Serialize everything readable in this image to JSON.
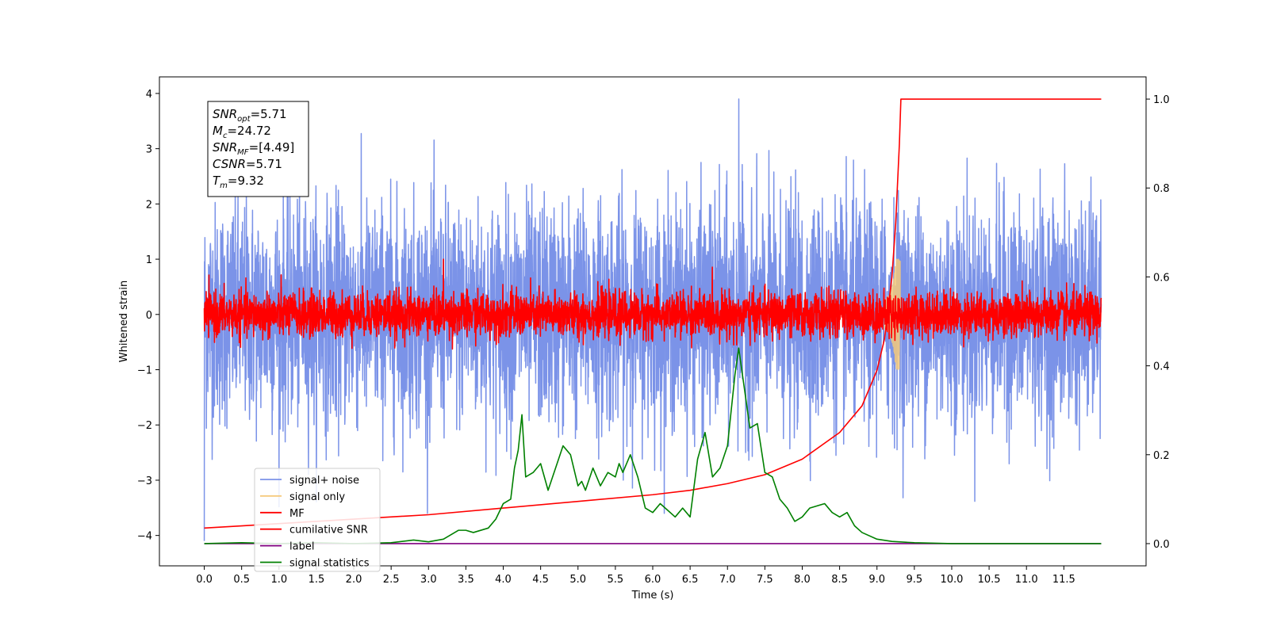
{
  "chart_data": {
    "type": "line",
    "title": "",
    "xlabel": "Time (s)",
    "ylabel": "Whitened strain",
    "y2label": "",
    "xlim": [
      -0.6,
      12.6
    ],
    "ylim": [
      -4.55,
      4.3
    ],
    "y2lim": [
      -0.05,
      1.05
    ],
    "x_ticks": [
      "0.0",
      "0.5",
      "1.0",
      "1.5",
      "2.0",
      "2.5",
      "3.0",
      "3.5",
      "4.0",
      "4.5",
      "5.0",
      "5.5",
      "6.0",
      "6.5",
      "7.0",
      "7.5",
      "8.0",
      "8.5",
      "9.0",
      "9.5",
      "10.0",
      "10.5",
      "11.0",
      "11.5"
    ],
    "y_ticks": [
      "4",
      "3",
      "2",
      "1",
      "0",
      "−1",
      "−2",
      "−3",
      "−4"
    ],
    "y2_ticks": [
      "1.0",
      "0.8",
      "0.6",
      "0.4",
      "0.2",
      "0.0"
    ],
    "grid": false,
    "legend_position": "lower-left",
    "annotation": {
      "lines": [
        {
          "main": "SNR",
          "sub": "opt",
          "rest": "=5.71"
        },
        {
          "main": "M",
          "sub": "c",
          "rest": "=24.72"
        },
        {
          "main": "SNR",
          "sub": "MF",
          "rest": "=[4.49]"
        },
        {
          "main": "CSNR",
          "sub": "",
          "rest": "=5.71"
        },
        {
          "main": "T",
          "sub": "m",
          "rest": "=9.32"
        }
      ]
    },
    "series": [
      {
        "name": "signal+ noise",
        "color": "#7b93e8",
        "axis": "left",
        "kind": "noise",
        "x_range": [
          0,
          12
        ],
        "mean": 0.0,
        "std": 1.0,
        "peak": {
          "x": 7.15,
          "y": 3.9
        },
        "min": {
          "x": 0.0,
          "y": -4.1
        }
      },
      {
        "name": "signal only",
        "color": "#f5c97a",
        "axis": "left",
        "kind": "chirp",
        "x_range": [
          9.1,
          9.35
        ],
        "amplitude": 1.0,
        "merger_x": 9.3
      },
      {
        "name": "MF",
        "color": "#ff0000",
        "axis": "left",
        "kind": "noise",
        "x_range": [
          0,
          12
        ],
        "mean": 0.0,
        "std": 0.2,
        "peak": {
          "x": 3.2,
          "y": 1.0
        }
      },
      {
        "name": "cumilative SNR",
        "color": "#ff0000",
        "axis": "right",
        "x": [
          0,
          0.5,
          1,
          2,
          3,
          4,
          5,
          6,
          6.5,
          7,
          7.5,
          8,
          8.5,
          8.8,
          9.0,
          9.1,
          9.2,
          9.25,
          9.3,
          9.32,
          10,
          11,
          12
        ],
        "y": [
          0.035,
          0.04,
          0.045,
          0.055,
          0.065,
          0.08,
          0.095,
          0.11,
          0.12,
          0.135,
          0.155,
          0.19,
          0.25,
          0.31,
          0.39,
          0.46,
          0.6,
          0.72,
          0.9,
          1.0,
          1.0,
          1.0,
          1.0
        ]
      },
      {
        "name": "label",
        "color": "#800080",
        "axis": "right",
        "x": [
          0,
          12
        ],
        "y": [
          0.0,
          0.0
        ]
      },
      {
        "name": "signal statistics",
        "color": "#008000",
        "axis": "right",
        "x": [
          0,
          0.5,
          1,
          1.5,
          2,
          2.5,
          2.8,
          3.0,
          3.2,
          3.4,
          3.5,
          3.6,
          3.8,
          3.9,
          4.0,
          4.05,
          4.1,
          4.15,
          4.2,
          4.25,
          4.3,
          4.4,
          4.5,
          4.6,
          4.7,
          4.8,
          4.9,
          5.0,
          5.05,
          5.1,
          5.2,
          5.3,
          5.4,
          5.5,
          5.55,
          5.6,
          5.7,
          5.8,
          5.9,
          6.0,
          6.1,
          6.2,
          6.3,
          6.4,
          6.5,
          6.6,
          6.7,
          6.8,
          6.9,
          7.0,
          7.1,
          7.15,
          7.2,
          7.3,
          7.4,
          7.5,
          7.6,
          7.7,
          7.8,
          7.9,
          8.0,
          8.1,
          8.3,
          8.4,
          8.5,
          8.6,
          8.7,
          8.8,
          9.0,
          9.2,
          9.5,
          10.0,
          11.0,
          12.0
        ],
        "y": [
          0.0,
          0.002,
          0.0,
          0.002,
          0.0,
          0.002,
          0.008,
          0.004,
          0.01,
          0.03,
          0.03,
          0.025,
          0.035,
          0.055,
          0.09,
          0.095,
          0.1,
          0.17,
          0.21,
          0.29,
          0.15,
          0.16,
          0.18,
          0.12,
          0.17,
          0.22,
          0.2,
          0.13,
          0.14,
          0.12,
          0.17,
          0.13,
          0.16,
          0.15,
          0.18,
          0.16,
          0.2,
          0.15,
          0.08,
          0.07,
          0.09,
          0.075,
          0.06,
          0.08,
          0.06,
          0.19,
          0.25,
          0.15,
          0.17,
          0.22,
          0.38,
          0.44,
          0.38,
          0.26,
          0.27,
          0.16,
          0.15,
          0.1,
          0.08,
          0.05,
          0.06,
          0.08,
          0.09,
          0.07,
          0.06,
          0.07,
          0.04,
          0.025,
          0.01,
          0.005,
          0.002,
          0.0,
          0.0,
          0.0
        ]
      }
    ]
  }
}
